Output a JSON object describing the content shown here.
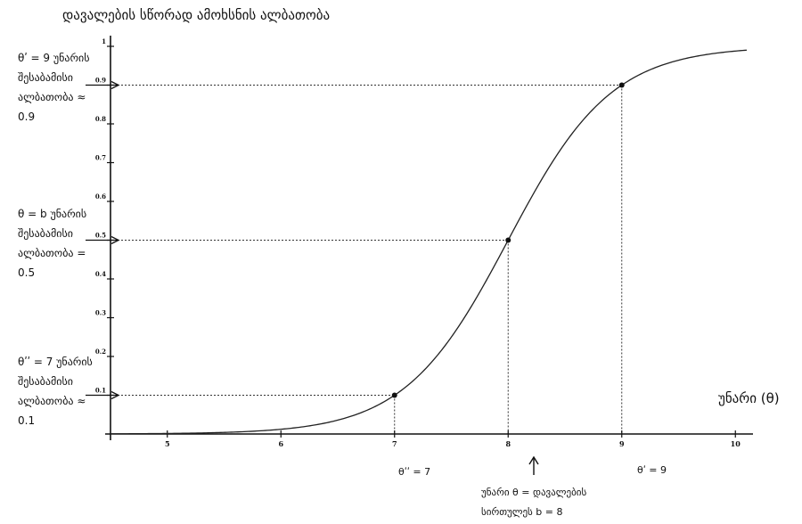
{
  "chart_data": {
    "type": "line",
    "title": "დავალების სწორად ამოხსნის ალბათობა",
    "xlabel": "უნარი (θ)",
    "xlim": [
      4.5,
      10.1
    ],
    "ylim": [
      0,
      1
    ],
    "x_ticks": [
      "5",
      "6",
      "7",
      "8",
      "9",
      "10"
    ],
    "y_ticks": [
      "0.1",
      "0.2",
      "0.3",
      "0.4",
      "0.5",
      "0.6",
      "0.7",
      "0.8",
      "0.9",
      "1"
    ],
    "curve": {
      "model": "logistic",
      "difficulty_b": 8,
      "slope": 2.197
    },
    "series": [
      {
        "x": [
          4.5,
          5,
          5.5,
          6,
          6.5,
          7,
          7.5,
          8,
          8.5,
          9,
          9.5,
          10
        ],
        "y": [
          0.0005,
          0.0014,
          0.004,
          0.012,
          0.036,
          0.1,
          0.25,
          0.5,
          0.75,
          0.9,
          0.964,
          0.988
        ]
      }
    ],
    "marked_points": [
      {
        "x": 7,
        "y": 0.1
      },
      {
        "x": 8,
        "y": 0.5
      },
      {
        "x": 9,
        "y": 0.9
      }
    ]
  },
  "annotations": {
    "theta_high": {
      "lines": [
        "θʹ = 9 უნარის",
        "შესაბამისი",
        "ალბათობა ≈"
      ],
      "value": "0.9"
    },
    "theta_b": {
      "lines": [
        "θ = b უნარის",
        "შესაბამისი",
        "ალბათობა ="
      ],
      "value": "0.5"
    },
    "theta_low": {
      "lines": [
        "θʹʹ = 7 უნარის",
        "შესაბამისი",
        "ალბათობა ≈"
      ],
      "value": "0.1"
    }
  },
  "bottom_labels": {
    "theta_low": "θʹʹ = 7",
    "theta_high": "θʹ = 9",
    "difficulty_line1": "უნარი θ = დავალების",
    "difficulty_line2": "სირთულეს b = 8"
  }
}
